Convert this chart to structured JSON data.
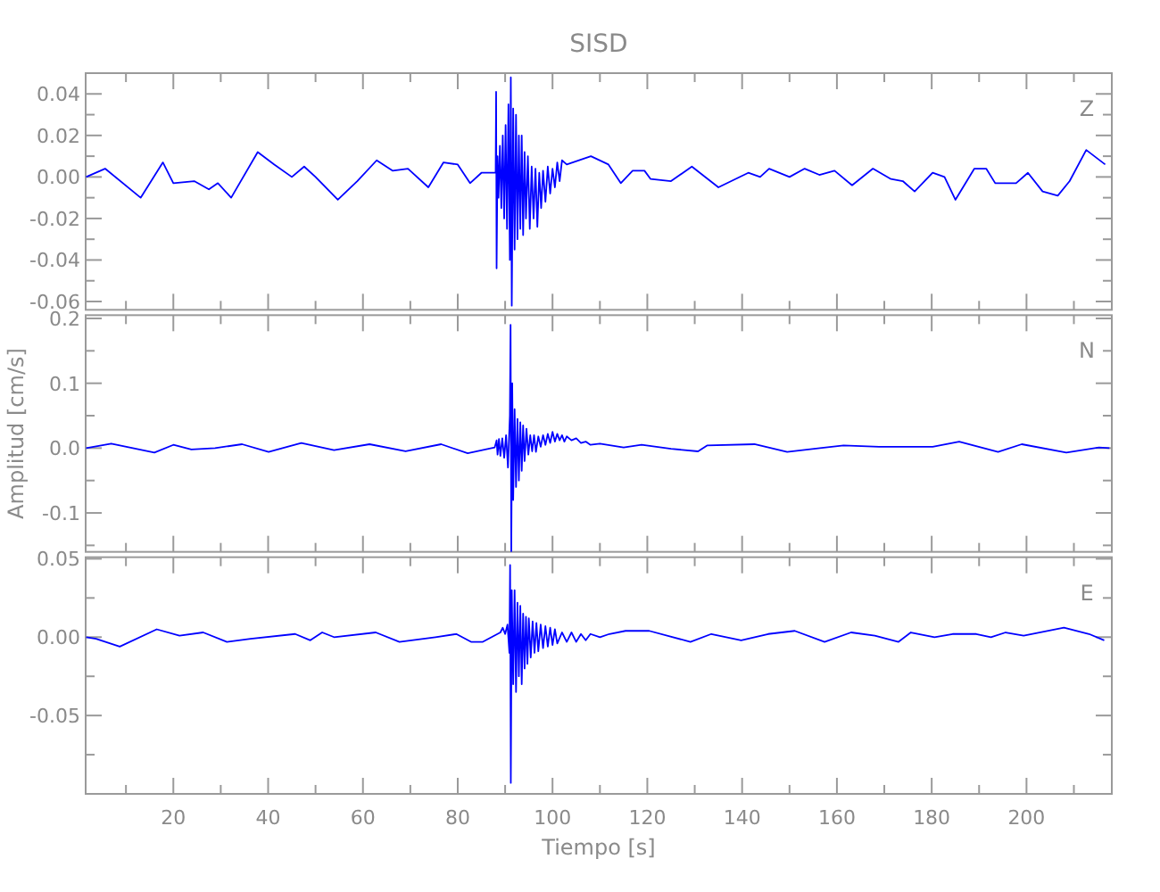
{
  "chart_data": [
    {
      "type": "line",
      "title": "SISD",
      "annotations": [
        "Z"
      ],
      "color": "#0000ff",
      "tick_labels": "y",
      "grid": false,
      "xlim": [
        1.5,
        218
      ],
      "ylim": [
        -0.064,
        0.05
      ],
      "yticks": [
        {
          "value": -0.06,
          "label": "-0.06"
        },
        {
          "value": -0.05,
          "label": null
        },
        {
          "value": -0.04,
          "label": "-0.04"
        },
        {
          "value": -0.03,
          "label": null
        },
        {
          "value": -0.02,
          "label": "-0.02"
        },
        {
          "value": -0.01,
          "label": null
        },
        {
          "value": 0,
          "label": "0.00"
        },
        {
          "value": 0.01,
          "label": null
        },
        {
          "value": 0.02,
          "label": "0.02"
        },
        {
          "value": 0.03,
          "label": null
        },
        {
          "value": 0.04,
          "label": "0.04"
        }
      ],
      "x": [
        1.6,
        5.6,
        13.1,
        17.8,
        20,
        24.4,
        27.5,
        29.4,
        32.2,
        37.8,
        41.3,
        45,
        47.6,
        50,
        54.7,
        58.8,
        62.9,
        66.3,
        69.5,
        73.8,
        77,
        80,
        82.6,
        85,
        88,
        88.1,
        88.2,
        88.4,
        88.6,
        88.9,
        89.2,
        89.5,
        89.8,
        90.1,
        90.4,
        90.7,
        91.0,
        91.2,
        91.4,
        91.7,
        92.0,
        92.3,
        92.6,
        92.9,
        93.2,
        93.5,
        93.8,
        94.1,
        94.4,
        94.8,
        95.2,
        95.6,
        96.0,
        96.4,
        96.8,
        97.2,
        97.6,
        98.0,
        98.5,
        99.0,
        99.5,
        100,
        100.5,
        101,
        101.5,
        102,
        103,
        108.1,
        111.8,
        114.4,
        116.9,
        119.4,
        120.7,
        125,
        129.4,
        135,
        141.3,
        143.8,
        145.7,
        150,
        153.2,
        156.3,
        159.5,
        163.2,
        167.6,
        171.4,
        173.9,
        176.4,
        180.2,
        182.7,
        185,
        189,
        191.5,
        193.4,
        197.8,
        200.3,
        203.4,
        206.6,
        209.1,
        212.6,
        216.6
      ],
      "values": [
        0,
        0.004,
        -0.01,
        0.007,
        -0.003,
        -0.002,
        -0.006,
        -0.003,
        -0.01,
        0.012,
        0.006,
        0,
        0.005,
        0,
        -0.011,
        -0.002,
        0.008,
        0.003,
        0.004,
        -0.005,
        0.007,
        0.006,
        -0.003,
        0.002,
        0.002,
        0.041,
        -0.044,
        0.01,
        -0.01,
        0.015,
        -0.015,
        0.02,
        -0.02,
        0.025,
        -0.025,
        0.035,
        -0.04,
        0.048,
        -0.062,
        0.033,
        -0.035,
        0.03,
        -0.03,
        0.02,
        -0.025,
        0.02,
        -0.028,
        0.012,
        -0.02,
        0.01,
        -0.025,
        0.005,
        -0.02,
        0.004,
        -0.024,
        0.002,
        -0.015,
        0.003,
        -0.012,
        0.005,
        -0.008,
        0.004,
        -0.005,
        0.007,
        -0.002,
        0.008,
        0.006,
        0.01,
        0.006,
        -0.003,
        0.003,
        0.003,
        -0.001,
        -0.002,
        0.005,
        -0.005,
        0.002,
        0,
        0.004,
        0,
        0.004,
        0.001,
        0.003,
        -0.004,
        0.004,
        -0.001,
        -0.002,
        -0.007,
        0.002,
        0,
        -0.011,
        0.004,
        0.004,
        -0.003,
        -0.003,
        0.002,
        -0.007,
        -0.009,
        -0.002,
        0.013,
        0.006
      ]
    },
    {
      "type": "line",
      "ylabel": "Amplitud  [cm/s]",
      "annotations": [
        "N"
      ],
      "color": "#0000ff",
      "tick_labels": "y",
      "grid": false,
      "xlim": [
        1.5,
        218
      ],
      "ylim": [
        -0.16,
        0.205
      ],
      "yticks": [
        {
          "value": -0.15,
          "label": null
        },
        {
          "value": -0.1,
          "label": "-0.1"
        },
        {
          "value": -0.05,
          "label": null
        },
        {
          "value": 0,
          "label": "0.0"
        },
        {
          "value": 0.05,
          "label": null
        },
        {
          "value": 0.1,
          "label": "0.1"
        },
        {
          "value": 0.15,
          "label": null
        },
        {
          "value": 0.2,
          "label": "0.2"
        }
      ],
      "x": [
        1.6,
        6.9,
        16,
        20,
        23.8,
        28.8,
        34.5,
        40.1,
        47,
        53.9,
        61.4,
        69,
        76.5,
        82.1,
        87.8,
        88.2,
        88.4,
        88.7,
        89.0,
        89.4,
        89.8,
        90.2,
        90.6,
        91.0,
        91.15,
        91.3,
        91.5,
        91.7,
        92.0,
        92.3,
        92.6,
        92.9,
        93.2,
        93.5,
        93.8,
        94.1,
        94.5,
        94.9,
        95.3,
        95.7,
        96.1,
        96.5,
        97,
        97.5,
        98,
        98.5,
        99,
        99.5,
        100,
        100.5,
        101,
        101.5,
        102,
        102.5,
        103,
        104,
        105,
        106,
        107,
        108,
        110,
        115,
        118.8,
        125,
        130.7,
        132.6,
        142.6,
        149.5,
        156.4,
        161.4,
        168.9,
        180.2,
        185.8,
        194,
        199,
        208.4,
        215.3,
        217.5
      ],
      "values": [
        0,
        0.007,
        -0.007,
        0.005,
        -0.002,
        0,
        0.006,
        -0.006,
        0.008,
        -0.003,
        0.006,
        -0.005,
        0.006,
        -0.008,
        0.001,
        0.012,
        -0.01,
        0.014,
        -0.012,
        0.015,
        -0.015,
        0.02,
        -0.03,
        0.05,
        0.19,
        -0.159,
        0.1,
        -0.08,
        0.06,
        -0.06,
        0.045,
        -0.05,
        0.04,
        -0.035,
        0.035,
        -0.02,
        0.03,
        -0.01,
        0.02,
        -0.005,
        0.02,
        -0.006,
        0.018,
        0.002,
        0.02,
        0.005,
        0.022,
        0.008,
        0.025,
        0.01,
        0.022,
        0.012,
        0.02,
        0.01,
        0.018,
        0.012,
        0.015,
        0.008,
        0.01,
        0.005,
        0.007,
        0.001,
        0.005,
        -0.001,
        -0.005,
        0.004,
        0.006,
        -0.006,
        0,
        0.004,
        0.002,
        0.002,
        0.01,
        -0.006,
        0.006,
        -0.007,
        0.001,
        0
      ]
    },
    {
      "type": "line",
      "xlabel": "Tiempo  [s]",
      "annotations": [
        "E"
      ],
      "color": "#0000ff",
      "grid": false,
      "xlim": [
        1.5,
        218
      ],
      "xticks": [
        {
          "value": 10,
          "label": null
        },
        {
          "value": 20,
          "label": "20"
        },
        {
          "value": 30,
          "label": null
        },
        {
          "value": 40,
          "label": "40"
        },
        {
          "value": 50,
          "label": null
        },
        {
          "value": 60,
          "label": "60"
        },
        {
          "value": 70,
          "label": null
        },
        {
          "value": 80,
          "label": "80"
        },
        {
          "value": 90,
          "label": null
        },
        {
          "value": 100,
          "label": "100"
        },
        {
          "value": 110,
          "label": null
        },
        {
          "value": 120,
          "label": "120"
        },
        {
          "value": 130,
          "label": null
        },
        {
          "value": 140,
          "label": "140"
        },
        {
          "value": 150,
          "label": null
        },
        {
          "value": 160,
          "label": "160"
        },
        {
          "value": 170,
          "label": null
        },
        {
          "value": 180,
          "label": "180"
        },
        {
          "value": 190,
          "label": null
        },
        {
          "value": 200,
          "label": "200"
        },
        {
          "value": 210,
          "label": null
        }
      ],
      "ylim": [
        -0.1,
        0.051
      ],
      "yticks": [
        {
          "value": -0.075,
          "label": null
        },
        {
          "value": -0.05,
          "label": "-0.05"
        },
        {
          "value": -0.025,
          "label": null
        },
        {
          "value": 0,
          "label": "0.00"
        },
        {
          "value": 0.025,
          "label": null
        },
        {
          "value": 0.05,
          "label": "0.05"
        }
      ],
      "x": [
        1.6,
        3.7,
        8.7,
        16.5,
        21.3,
        26.3,
        31.3,
        36.3,
        45.7,
        48.9,
        51.4,
        53.9,
        62.7,
        67.7,
        75.3,
        79.7,
        82.8,
        85.3,
        89,
        89.5,
        90.0,
        90.5,
        90.9,
        91.05,
        91.2,
        91.4,
        91.7,
        92.0,
        92.3,
        92.6,
        92.9,
        93.2,
        93.5,
        93.8,
        94.1,
        94.4,
        94.7,
        95.0,
        95.4,
        95.8,
        96.2,
        96.6,
        97.0,
        97.5,
        98,
        98.5,
        99,
        99.5,
        100,
        100.5,
        101,
        102,
        103,
        104,
        105,
        106,
        107,
        108,
        110,
        112,
        115.4,
        120.4,
        129.1,
        133.5,
        139.8,
        145.5,
        151.1,
        157.4,
        163,
        168,
        173,
        175.6,
        180.6,
        184.4,
        189.4,
        192.5,
        195.6,
        199.4,
        207.9,
        213.2,
        216.4
      ],
      "values": [
        0,
        -0.001,
        -0.006,
        0.005,
        0.001,
        0.003,
        -0.003,
        -0.001,
        0.002,
        -0.002,
        0.003,
        0,
        0.003,
        -0.003,
        0,
        0.002,
        -0.003,
        -0.003,
        0.003,
        0.006,
        0.002,
        0.008,
        -0.01,
        0.046,
        -0.093,
        0.03,
        -0.03,
        0.03,
        -0.035,
        0.022,
        -0.025,
        0.02,
        -0.03,
        0.015,
        -0.02,
        0.013,
        -0.017,
        0.012,
        -0.013,
        0.01,
        -0.01,
        0.009,
        -0.009,
        0.008,
        -0.007,
        0.007,
        -0.006,
        0.006,
        -0.005,
        0.005,
        -0.004,
        0.003,
        -0.003,
        0.003,
        -0.003,
        0.002,
        -0.002,
        0.002,
        0,
        0.002,
        0.004,
        0.004,
        -0.003,
        0.002,
        -0.002,
        0.002,
        0.004,
        -0.003,
        0.003,
        0.001,
        -0.003,
        0.003,
        0,
        0.002,
        0.002,
        0,
        0.003,
        0.001,
        0.006,
        0.002,
        -0.002
      ]
    }
  ]
}
